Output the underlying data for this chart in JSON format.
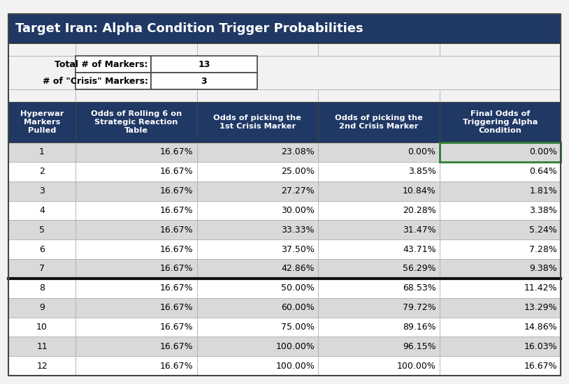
{
  "title": "Target Iran: Alpha Condition Trigger Probabilities",
  "info_labels": [
    "Total # of Markers:",
    "# of \"Crisis\" Markers:"
  ],
  "info_values": [
    "13",
    "3"
  ],
  "col_headers": [
    "Hyperwar\nMarkers\nPulled",
    "Odds of Rolling 6 on\nStrategic Reaction\nTable",
    "Odds of picking the\n1st Crisis Marker",
    "Odds of picking the\n2nd Crisis Marker",
    "Final Odds of\nTriggering Alpha\nCondition"
  ],
  "rows": [
    [
      "1",
      "16.67%",
      "23.08%",
      "0.00%",
      "0.00%"
    ],
    [
      "2",
      "16.67%",
      "25.00%",
      "3.85%",
      "0.64%"
    ],
    [
      "3",
      "16.67%",
      "27.27%",
      "10.84%",
      "1.81%"
    ],
    [
      "4",
      "16.67%",
      "30.00%",
      "20.28%",
      "3.38%"
    ],
    [
      "5",
      "16.67%",
      "33.33%",
      "31.47%",
      "5.24%"
    ],
    [
      "6",
      "16.67%",
      "37.50%",
      "43.71%",
      "7.28%"
    ],
    [
      "7",
      "16.67%",
      "42.86%",
      "56.29%",
      "9.38%"
    ],
    [
      "8",
      "16.67%",
      "50.00%",
      "68.53%",
      "11.42%"
    ],
    [
      "9",
      "16.67%",
      "60.00%",
      "79.72%",
      "13.29%"
    ],
    [
      "10",
      "16.67%",
      "75.00%",
      "89.16%",
      "14.86%"
    ],
    [
      "11",
      "16.67%",
      "100.00%",
      "96.15%",
      "16.03%"
    ],
    [
      "12",
      "16.67%",
      "100.00%",
      "100.00%",
      "16.67%"
    ]
  ],
  "header_bg": "#1F3864",
  "header_fg": "#FFFFFF",
  "row_odd_bg": "#D9D9D9",
  "row_even_bg": "#FFFFFF",
  "thick_border_after_row": 6,
  "green_cell_row": 0,
  "green_cell_col": 4,
  "title_fontsize": 13,
  "header_fontsize": 8.2,
  "data_fontsize": 9,
  "info_fontsize": 9,
  "outer_bg": "#F2F2F2",
  "grid_color": "#AAAAAA",
  "thick_line_color": "#111111",
  "green_border_color": "#2E7D32"
}
